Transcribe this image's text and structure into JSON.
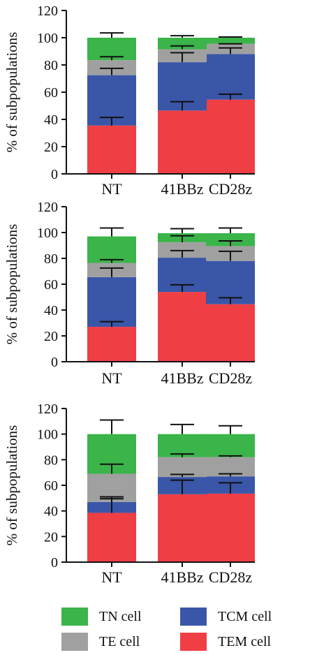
{
  "chart_data": [
    {
      "type": "bar",
      "stacked": true,
      "ylabel": "% of subpopulations",
      "xlabel": "",
      "ylim": [
        0,
        120
      ],
      "yticks": [
        "0",
        "20",
        "40",
        "60",
        "80",
        "100",
        "120"
      ],
      "categories": [
        "NT",
        "41BBz",
        "CD28z"
      ],
      "series": [
        {
          "name": "TEM cell",
          "color": "#ef3e44",
          "values": [
            35.5,
            46.5,
            54.5
          ],
          "err_top": [
            41.5,
            53,
            58.5
          ]
        },
        {
          "name": "TCM cell",
          "color": "#3a56a8",
          "values": [
            37,
            35.5,
            33.5
          ],
          "err_top": [
            77.5,
            89,
            92.5
          ]
        },
        {
          "name": "TE cell",
          "color": "#a0a0a0",
          "values": [
            11,
            9.5,
            7.5
          ],
          "err_top": [
            86,
            94,
            95.5
          ]
        },
        {
          "name": "TN cell",
          "color": "#3bb44a",
          "values": [
            16.5,
            8.5,
            4.5
          ],
          "err_top": [
            103.5,
            101.5,
            100.5
          ]
        }
      ]
    },
    {
      "type": "bar",
      "stacked": true,
      "ylabel": "% of subpopulations",
      "xlabel": "",
      "ylim": [
        0,
        120
      ],
      "yticks": [
        "0",
        "20",
        "40",
        "60",
        "80",
        "100",
        "120"
      ],
      "categories": [
        "NT",
        "41BBz",
        "CD28z"
      ],
      "series": [
        {
          "name": "TEM cell",
          "color": "#ef3e44",
          "values": [
            27,
            54,
            44.5
          ],
          "err_top": [
            31,
            59.5,
            49.5
          ]
        },
        {
          "name": "TCM cell",
          "color": "#3a56a8",
          "values": [
            38.5,
            26.5,
            33.5
          ],
          "err_top": [
            72.5,
            86,
            85.5
          ]
        },
        {
          "name": "TE cell",
          "color": "#a0a0a0",
          "values": [
            11,
            12,
            11.5
          ],
          "err_top": [
            79,
            97.5,
            93.5
          ]
        },
        {
          "name": "TN cell",
          "color": "#3bb44a",
          "values": [
            20.5,
            7,
            10
          ],
          "err_top": [
            103.5,
            103,
            103.5
          ]
        }
      ]
    },
    {
      "type": "bar",
      "stacked": true,
      "ylabel": "% of subpopulations",
      "xlabel": "",
      "ylim": [
        0,
        120
      ],
      "yticks": [
        "0",
        "20",
        "40",
        "60",
        "80",
        "100",
        "120"
      ],
      "categories": [
        "NT",
        "41BBz",
        "CD28z"
      ],
      "series": [
        {
          "name": "TEM cell",
          "color": "#ef3e44",
          "values": [
            38.5,
            53,
            53.5
          ],
          "err_top": [
            49.5,
            64,
            62
          ]
        },
        {
          "name": "TCM cell",
          "color": "#3a56a8",
          "values": [
            8.5,
            13.5,
            13.5
          ],
          "err_top": [
            51,
            68.5,
            69
          ]
        },
        {
          "name": "TE cell",
          "color": "#a0a0a0",
          "values": [
            22,
            15.5,
            15
          ],
          "err_top": [
            76.5,
            84.5,
            83
          ]
        },
        {
          "name": "TN cell",
          "color": "#3bb44a",
          "values": [
            31,
            18,
            18
          ],
          "err_top": [
            111,
            107.5,
            106.5
          ]
        }
      ]
    }
  ],
  "legend": {
    "items": [
      {
        "label": "TN cell",
        "color": "#3bb44a"
      },
      {
        "label": "TCM cell",
        "color": "#3a56a8"
      },
      {
        "label": "TE cell",
        "color": "#a0a0a0"
      },
      {
        "label": "TEM cell",
        "color": "#ef3e44"
      }
    ]
  }
}
